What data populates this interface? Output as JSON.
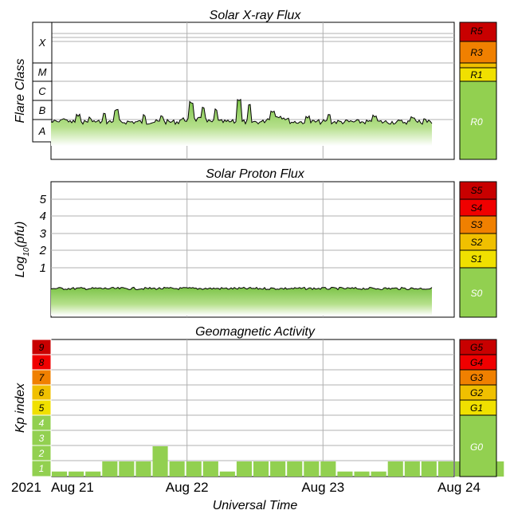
{
  "panels": {
    "xray": {
      "title": "Solar X-ray Flux",
      "ylabel": "Flare Class",
      "classes": [
        "X",
        "M",
        "C",
        "B",
        "A"
      ],
      "scale": [
        {
          "label": "R5",
          "color": "#c80000"
        },
        {
          "label": "R3",
          "color": "#f08000"
        },
        {
          "label": "R1",
          "color": "#f0e000"
        },
        {
          "label": "R0",
          "color": "#92d050"
        }
      ]
    },
    "proton": {
      "title": "Solar Proton Flux",
      "ylabel_prefix": "Log",
      "ylabel_sub": "10",
      "ylabel_suffix": "(pfu)",
      "ticks": [
        "5",
        "4",
        "3",
        "2",
        "1"
      ],
      "scale": [
        {
          "label": "S5",
          "color": "#c80000"
        },
        {
          "label": "S4",
          "color": "#f00000"
        },
        {
          "label": "S3",
          "color": "#f08000"
        },
        {
          "label": "S2",
          "color": "#f0c000"
        },
        {
          "label": "S1",
          "color": "#f0e000"
        },
        {
          "label": "S0",
          "color": "#92d050"
        }
      ]
    },
    "geomag": {
      "title": "Geomagnetic Activity",
      "ylabel": "Kp index",
      "kp_levels": [
        {
          "label": "9",
          "color": "#c80000"
        },
        {
          "label": "8",
          "color": "#f00000"
        },
        {
          "label": "7",
          "color": "#f08000"
        },
        {
          "label": "6",
          "color": "#f0c000"
        },
        {
          "label": "5",
          "color": "#f0e000"
        },
        {
          "label": "4",
          "color": "#92d050"
        },
        {
          "label": "3",
          "color": "#92d050"
        },
        {
          "label": "2",
          "color": "#92d050"
        },
        {
          "label": "1",
          "color": "#92d050"
        }
      ],
      "scale": [
        {
          "label": "G5",
          "color": "#c80000"
        },
        {
          "label": "G4",
          "color": "#f00000"
        },
        {
          "label": "G3",
          "color": "#f08000"
        },
        {
          "label": "G2",
          "color": "#f0c000"
        },
        {
          "label": "G1",
          "color": "#f0e000"
        },
        {
          "label": "G0",
          "color": "#92d050"
        }
      ]
    }
  },
  "xaxis": {
    "label": "Universal Time",
    "year": "2021",
    "ticks": [
      "Aug 21",
      "Aug 22",
      "Aug 23",
      "Aug 24"
    ]
  },
  "colors": {
    "data_fill": "#92d050",
    "data_line": "#000000",
    "grid": "#b0b0b0"
  },
  "chart_data": [
    {
      "type": "area",
      "title": "Solar X-ray Flux",
      "ylabel": "Flare Class",
      "y_scale": "log",
      "level": "B",
      "x": [
        "Aug 21",
        "Aug 22",
        "Aug 23",
        "Aug 24"
      ]
    },
    {
      "type": "area",
      "title": "Solar Proton Flux",
      "ylabel": "Log10(pfu)",
      "ylim": [
        0,
        6
      ],
      "level": 0.3,
      "x": [
        "Aug 21",
        "Aug 22",
        "Aug 23",
        "Aug 24"
      ]
    },
    {
      "type": "bar",
      "title": "Geomagnetic Activity",
      "ylabel": "Kp index",
      "ylim": [
        0,
        9
      ],
      "values": [
        0.33,
        0.33,
        0.33,
        1,
        1,
        1,
        2,
        1,
        1,
        1,
        0.33,
        1,
        1,
        1,
        1,
        1,
        1,
        0.33,
        0.33,
        0.33,
        1,
        1,
        1,
        1,
        1,
        1,
        1
      ]
    }
  ]
}
